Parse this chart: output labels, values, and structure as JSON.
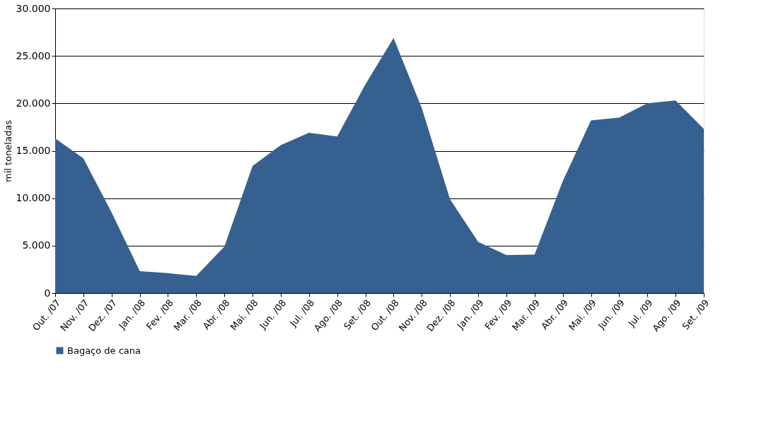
{
  "chart_data": {
    "type": "area",
    "ylabel": "mil toneladas",
    "categories": [
      "Out. /07",
      "Nov. /07",
      "Dez. /07",
      "Jan. /08",
      "Fev. /08",
      "Mar. /08",
      "Abr. /08",
      "Mai. /08",
      "Jun. /08",
      "Jul. /08",
      "Ago. /08",
      "Set. /08",
      "Out. /08",
      "Nov. /08",
      "Dez. /08",
      "Jan. /09",
      "Fev. /09",
      "Mar. /09",
      "Abr. /09",
      "Mai. /09",
      "Jun. /09",
      "Jul. /09",
      "Ago. /09",
      "Set. /09"
    ],
    "series": [
      {
        "name": "Bagaço de cana",
        "color": "#36608f",
        "values": [
          16300,
          14200,
          8500,
          2300,
          2100,
          1800,
          4900,
          13400,
          15600,
          16900,
          16500,
          22000,
          26900,
          19500,
          9900,
          5400,
          4000,
          4050,
          11800,
          18200,
          18500,
          20000,
          20300,
          17300
        ]
      }
    ],
    "ylim": [
      0,
      30000
    ],
    "yticks": [
      {
        "value": 0,
        "label": "0"
      },
      {
        "value": 5000,
        "label": "5.000"
      },
      {
        "value": 10000,
        "label": "10.000"
      },
      {
        "value": 15000,
        "label": "15.000"
      },
      {
        "value": 20000,
        "label": "20.000"
      },
      {
        "value": 25000,
        "label": "25.000"
      },
      {
        "value": 30000,
        "label": "30.000"
      }
    ],
    "grid": "y",
    "legend": "bottom"
  }
}
